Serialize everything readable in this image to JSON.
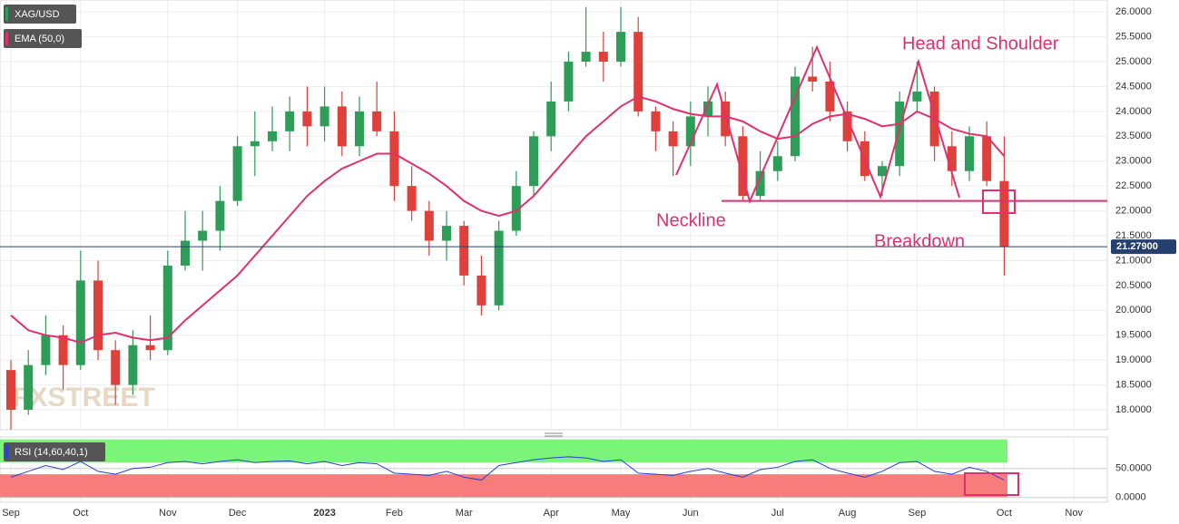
{
  "chart_data": [
    {
      "type": "candlestick",
      "title": "XAG/USD",
      "watermark": "FXSTREET",
      "categories": [
        "Sep",
        null,
        null,
        null,
        "Oct",
        null,
        null,
        null,
        null,
        "Nov",
        null,
        null,
        null,
        "Dec",
        null,
        null,
        null,
        null,
        "2023",
        null,
        null,
        null,
        "Feb",
        null,
        null,
        null,
        "Mar",
        null,
        null,
        null,
        null,
        "Apr",
        null,
        null,
        null,
        "May",
        null,
        null,
        null,
        "Jun",
        null,
        null,
        null,
        null,
        "Jul",
        null,
        null,
        null,
        "Aug",
        null,
        null,
        null,
        "Sep",
        null,
        null,
        null,
        null,
        "Oct",
        null,
        null,
        null,
        "Nov"
      ],
      "open": [
        18.8,
        18.0,
        18.9,
        19.5,
        18.9,
        20.6,
        19.2,
        18.5,
        19.3,
        19.2,
        20.9,
        21.4,
        21.6,
        22.2,
        23.3,
        23.4,
        23.6,
        24.0,
        23.7,
        24.1,
        23.3,
        24.0,
        23.6,
        22.5,
        22.0,
        21.4,
        21.7,
        20.7,
        20.1,
        21.6,
        22.5,
        23.5,
        24.2,
        25.0,
        25.2,
        25.0,
        25.6,
        24.0,
        23.6,
        23.3,
        23.9,
        24.2,
        23.5,
        22.3,
        22.8,
        23.1,
        24.7,
        24.6,
        24.0,
        23.4,
        22.7,
        22.9,
        24.2,
        24.4,
        23.3,
        22.8,
        23.5,
        22.6,
        null,
        null,
        null,
        null
      ],
      "high": [
        19.0,
        19.2,
        19.9,
        19.7,
        21.2,
        21.0,
        19.4,
        19.6,
        19.9,
        21.2,
        22.0,
        22.0,
        22.5,
        23.5,
        24.0,
        24.1,
        24.3,
        24.5,
        24.5,
        24.4,
        24.3,
        24.6,
        24.0,
        22.9,
        22.2,
        22.0,
        21.8,
        21.1,
        21.8,
        22.8,
        23.6,
        24.6,
        25.2,
        26.1,
        25.6,
        26.1,
        25.9,
        24.1,
        23.8,
        24.2,
        24.5,
        24.4,
        23.7,
        23.2,
        23.4,
        24.9,
        25.3,
        25.0,
        24.2,
        23.6,
        23.0,
        24.4,
        25.0,
        24.5,
        23.6,
        23.7,
        23.8,
        23.5,
        null,
        null,
        null,
        null
      ],
      "low": [
        17.6,
        17.9,
        18.7,
        18.4,
        18.8,
        19.0,
        18.1,
        18.3,
        19.0,
        19.1,
        20.8,
        20.8,
        21.2,
        22.1,
        22.7,
        23.2,
        23.2,
        23.3,
        23.4,
        23.1,
        23.1,
        23.5,
        22.2,
        21.8,
        21.1,
        21.0,
        20.5,
        19.9,
        20.0,
        21.5,
        22.3,
        23.2,
        24.0,
        24.9,
        24.6,
        24.9,
        23.9,
        23.2,
        22.7,
        22.9,
        23.5,
        23.3,
        22.2,
        22.2,
        22.6,
        23.0,
        24.4,
        23.8,
        23.2,
        22.6,
        22.3,
        22.7,
        24.0,
        23.0,
        22.5,
        22.6,
        22.5,
        20.7,
        null,
        null,
        null,
        null
      ],
      "close": [
        18.0,
        18.9,
        19.5,
        18.9,
        20.6,
        19.2,
        18.5,
        19.3,
        19.2,
        20.9,
        21.4,
        21.6,
        22.2,
        23.3,
        23.4,
        23.6,
        24.0,
        23.7,
        24.1,
        23.3,
        24.0,
        23.6,
        22.5,
        22.0,
        21.4,
        21.7,
        20.7,
        20.1,
        21.6,
        22.5,
        23.5,
        24.2,
        25.0,
        25.2,
        25.0,
        25.6,
        24.0,
        23.6,
        23.3,
        23.9,
        24.2,
        23.5,
        22.3,
        22.8,
        23.1,
        24.7,
        24.6,
        24.0,
        23.4,
        22.7,
        22.9,
        24.2,
        24.4,
        23.3,
        22.8,
        23.5,
        22.6,
        21.28,
        null,
        null,
        null,
        null
      ],
      "up_color": "#2e9d57",
      "down_color": "#e0403a",
      "series": [
        {
          "name": "EMA (50,0)",
          "color": "#e0306e",
          "values": [
            19.9,
            19.6,
            19.5,
            19.45,
            19.35,
            19.5,
            19.55,
            19.45,
            19.4,
            19.45,
            19.8,
            20.1,
            20.4,
            20.7,
            21.1,
            21.5,
            21.9,
            22.3,
            22.6,
            22.85,
            23.0,
            23.15,
            23.15,
            22.95,
            22.75,
            22.5,
            22.2,
            22.0,
            21.9,
            22.0,
            22.3,
            22.7,
            23.1,
            23.5,
            23.8,
            24.1,
            24.3,
            24.2,
            24.05,
            23.95,
            23.9,
            23.9,
            23.8,
            23.6,
            23.45,
            23.5,
            23.75,
            23.9,
            23.95,
            23.85,
            23.7,
            23.75,
            24.0,
            23.85,
            23.65,
            23.55,
            23.5,
            23.1,
            null,
            null,
            null,
            null
          ]
        }
      ],
      "ylim": [
        17.6,
        26.24
      ],
      "yticks": [
        {
          "value": 18,
          "label": "18.0000"
        },
        {
          "value": 18.5,
          "label": "18.5000"
        },
        {
          "value": 19,
          "label": "19.0000"
        },
        {
          "value": 19.5,
          "label": "19.5000"
        },
        {
          "value": 20,
          "label": "20.0000"
        },
        {
          "value": 20.5,
          "label": "20.5000"
        },
        {
          "value": 21,
          "label": "21.0000"
        },
        {
          "value": 21.5,
          "label": "21.5000"
        },
        {
          "value": 22,
          "label": "22.0000"
        },
        {
          "value": 22.5,
          "label": "22.5000"
        },
        {
          "value": 23,
          "label": "23.0000"
        },
        {
          "value": 23.5,
          "label": "23.5000"
        },
        {
          "value": 24,
          "label": "24.0000"
        },
        {
          "value": 24.5,
          "label": "24.5000"
        },
        {
          "value": 25,
          "label": "25.0000"
        },
        {
          "value": 25.5,
          "label": "25.5000"
        },
        {
          "value": 26,
          "label": "26.0000"
        }
      ],
      "last_price": {
        "value": 21.279,
        "label": "21.27900"
      },
      "neckline": 22.2,
      "annotations": [
        "Head and Shoulder",
        "Neckline",
        "Breakdown"
      ],
      "grid": true
    },
    {
      "type": "line",
      "series": [
        {
          "name": "RSI (14,60,40,1)",
          "color": "#2a3fd6",
          "values": [
            35,
            45,
            55,
            48,
            62,
            45,
            40,
            50,
            52,
            60,
            62,
            58,
            62,
            65,
            60,
            62,
            63,
            58,
            62,
            55,
            60,
            58,
            42,
            40,
            38,
            45,
            35,
            30,
            55,
            60,
            65,
            68,
            70,
            68,
            62,
            65,
            42,
            40,
            38,
            45,
            50,
            42,
            35,
            48,
            52,
            62,
            65,
            50,
            42,
            35,
            45,
            60,
            62,
            45,
            40,
            52,
            45,
            30,
            null,
            null,
            null,
            null
          ]
        }
      ],
      "ylim": [
        -5,
        101
      ],
      "yticks": [
        {
          "value": 0,
          "label": "0.0000"
        },
        {
          "value": 50,
          "label": "50.0000"
        }
      ],
      "upper_band": [
        60,
        100
      ],
      "upper_color": "#7af57a",
      "lower_band": [
        0,
        40
      ],
      "lower_color": "#f87c7c"
    }
  ]
}
